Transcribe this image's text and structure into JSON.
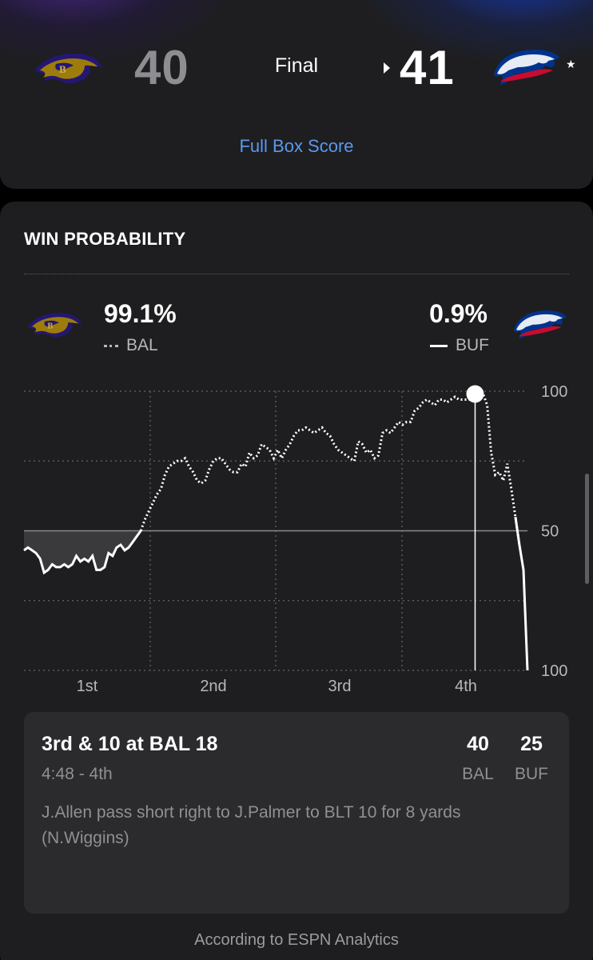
{
  "score": {
    "away_team": "BAL",
    "home_team": "BUF",
    "away_score": "40",
    "home_score": "41",
    "status": "Final",
    "box_score_link": "Full Box Score",
    "star": "★",
    "away_color": "#5a2d8c",
    "home_color": "#c8102e"
  },
  "win_probability": {
    "title": "WIN PROBABILITY",
    "away_pct": "99.1%",
    "home_pct": "0.9%",
    "away_label": "BAL",
    "home_label": "BUF",
    "away_legend": "dotted",
    "home_legend": "solid"
  },
  "chart_data": {
    "type": "line",
    "x": [
      0,
      1,
      2,
      3,
      4,
      5,
      6,
      7,
      8,
      9,
      10,
      11,
      12,
      13,
      14,
      15,
      16,
      17,
      18,
      19,
      20,
      21,
      22,
      23,
      24,
      25,
      26,
      27,
      28,
      29,
      30,
      31,
      32,
      33,
      34,
      35,
      36,
      37,
      38,
      39,
      40,
      41,
      42,
      43,
      44,
      45,
      46,
      47,
      48,
      49,
      50,
      51,
      52,
      53,
      54,
      55,
      56,
      57,
      58,
      59,
      60,
      61,
      62,
      63,
      64,
      65,
      66,
      67,
      68,
      69,
      70,
      71,
      72,
      73,
      74,
      75,
      76,
      77,
      78,
      79,
      80,
      81,
      82,
      83,
      84,
      85,
      86,
      87,
      88,
      89,
      90,
      91,
      92,
      93,
      94,
      95,
      96,
      97,
      98,
      99,
      100,
      101,
      102,
      103,
      104,
      105,
      106,
      107,
      108,
      109,
      110,
      111,
      112,
      113,
      114,
      115,
      116,
      117,
      118,
      119,
      120,
      121,
      122,
      123,
      124,
      125
    ],
    "series": [
      {
        "name": "BAL",
        "style": "dotted",
        "values": [
          57,
          56,
          57,
          58,
          60,
          65,
          64,
          62,
          63,
          63,
          62,
          63,
          62,
          59,
          61,
          60,
          61,
          59,
          64,
          64,
          63,
          58,
          59,
          56,
          55,
          57,
          56,
          54,
          52,
          50,
          46,
          43,
          40,
          37,
          35,
          30,
          27,
          26,
          25,
          25,
          24,
          27,
          29,
          32,
          33,
          32,
          28,
          25,
          24,
          24,
          26,
          28,
          29,
          29,
          26,
          27,
          22,
          24,
          23,
          19,
          20,
          21,
          24,
          21,
          24,
          21,
          19,
          16,
          14,
          14,
          13,
          14,
          15,
          14,
          13,
          15,
          16,
          19,
          21,
          22,
          23,
          24,
          25,
          18,
          19,
          22,
          21,
          24,
          23,
          15,
          14,
          15,
          13,
          11,
          12,
          11,
          11,
          7,
          6,
          4,
          3,
          4,
          5,
          3,
          3,
          4,
          3,
          2,
          3,
          3,
          3,
          3,
          1,
          0,
          1,
          5,
          22,
          30,
          29,
          32,
          26,
          35,
          45,
          55,
          64,
          100
        ],
        "note": "BAL win probability %, 0 = top (BAL 100), 100 = bottom (BUF 100)"
      }
    ],
    "xlabels": [
      "1st",
      "2nd",
      "3rd",
      "4th"
    ],
    "ylabels": [
      "100",
      "50",
      "100"
    ],
    "ylim": [
      0,
      100
    ],
    "grid": true,
    "current_marker_index": 112
  },
  "play": {
    "down_distance": "3rd & 10 at BAL 18",
    "clock": "4:48 - 4th",
    "description": "J.Allen pass short right to J.Palmer to BLT 10 for 8 yards (N.Wiggins)",
    "away_score": "40",
    "home_score": "25",
    "away_abbr": "BAL",
    "home_abbr": "BUF"
  },
  "footer": {
    "analytics_note": "According to ESPN Analytics"
  }
}
